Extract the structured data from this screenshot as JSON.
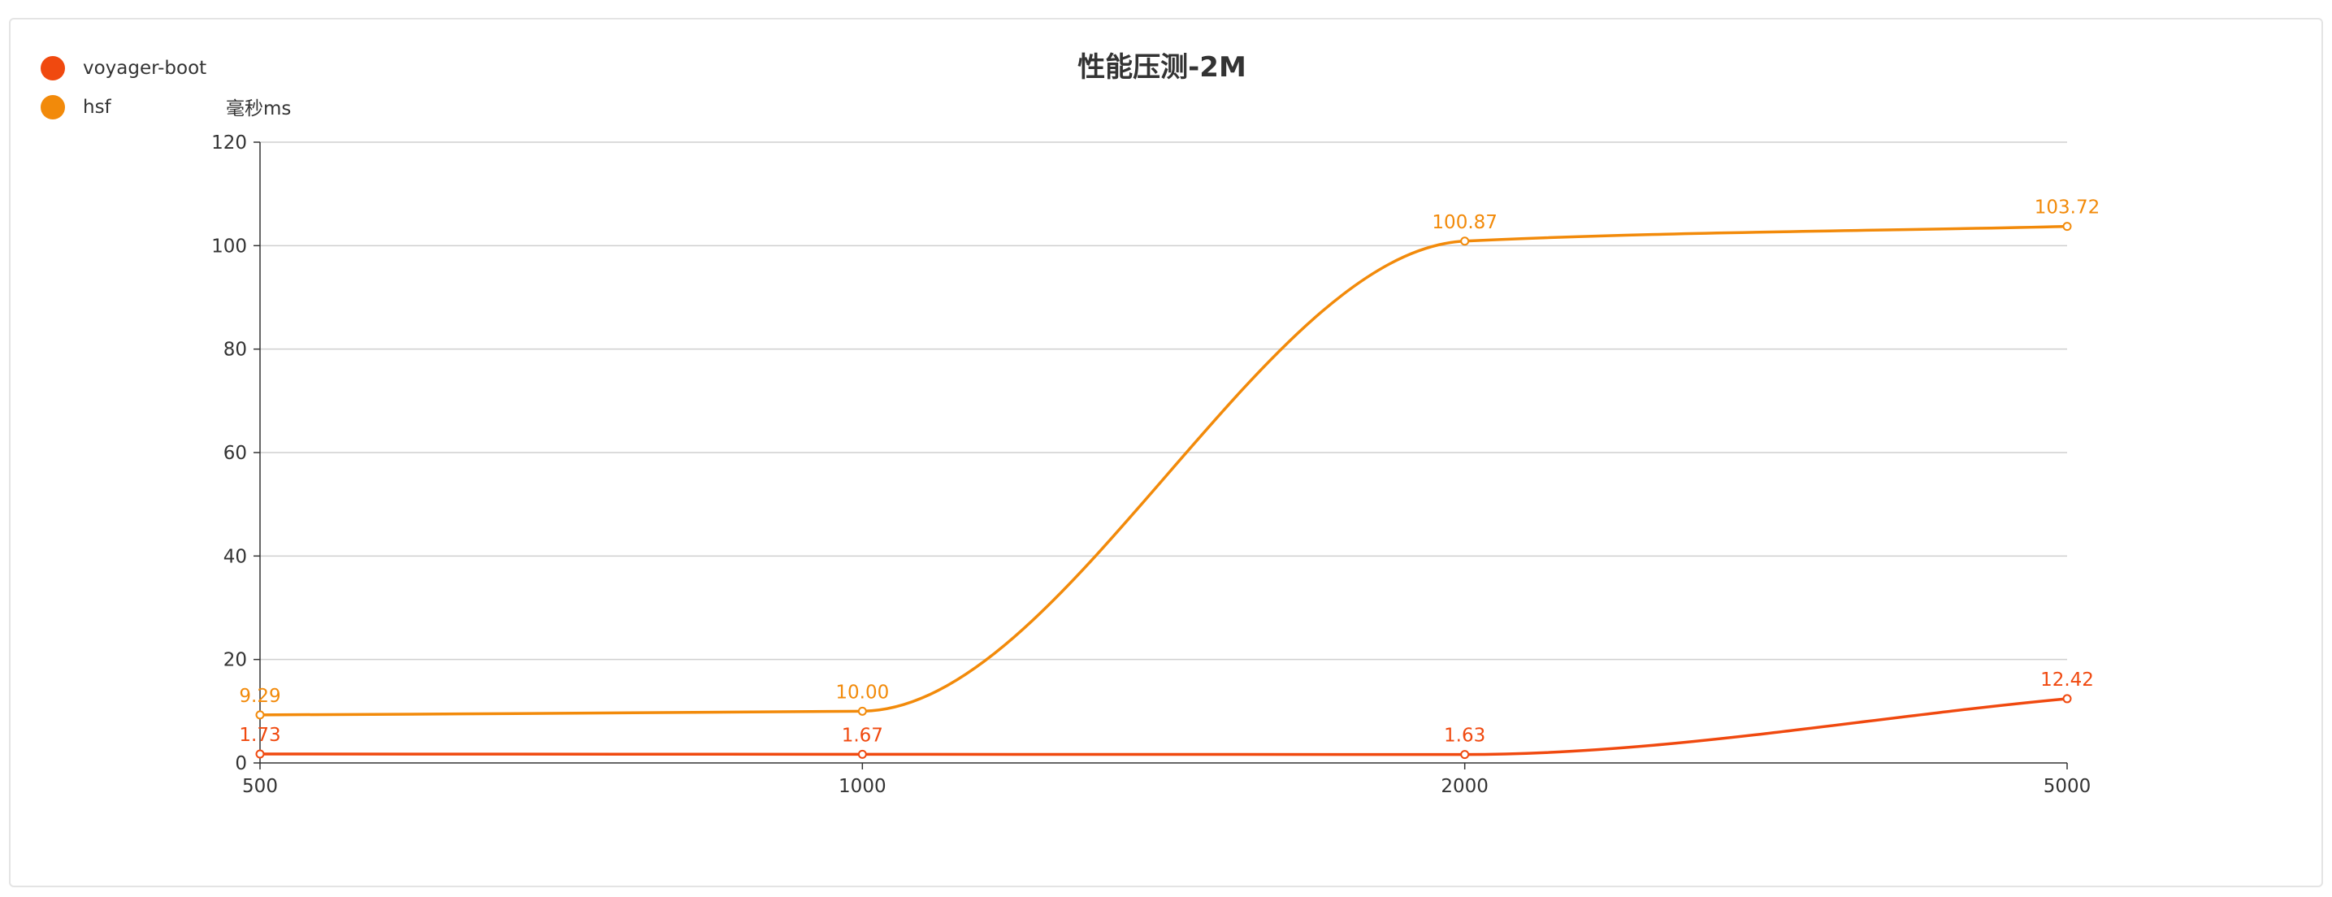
{
  "chart_data": {
    "type": "line",
    "title": "性能压测-2M",
    "ylabel": "毫秒ms",
    "xlabel": "",
    "categories": [
      "500",
      "1000",
      "2000",
      "5000"
    ],
    "ylim": [
      0,
      120
    ],
    "yticks": [
      0,
      20,
      40,
      60,
      80,
      100,
      120
    ],
    "grid": true,
    "legend_position": "top-left",
    "series": [
      {
        "name": "voyager-boot",
        "color": "#f0490f",
        "values": [
          1.73,
          1.67,
          1.63,
          12.42
        ],
        "labels": [
          "1.73",
          "1.67",
          "1.63",
          "12.42"
        ]
      },
      {
        "name": "hsf",
        "color": "#f28a0a",
        "values": [
          9.29,
          10.0,
          100.87,
          103.72
        ],
        "labels": [
          "9.29",
          "10.00",
          "100.87",
          "103.72"
        ]
      }
    ]
  }
}
